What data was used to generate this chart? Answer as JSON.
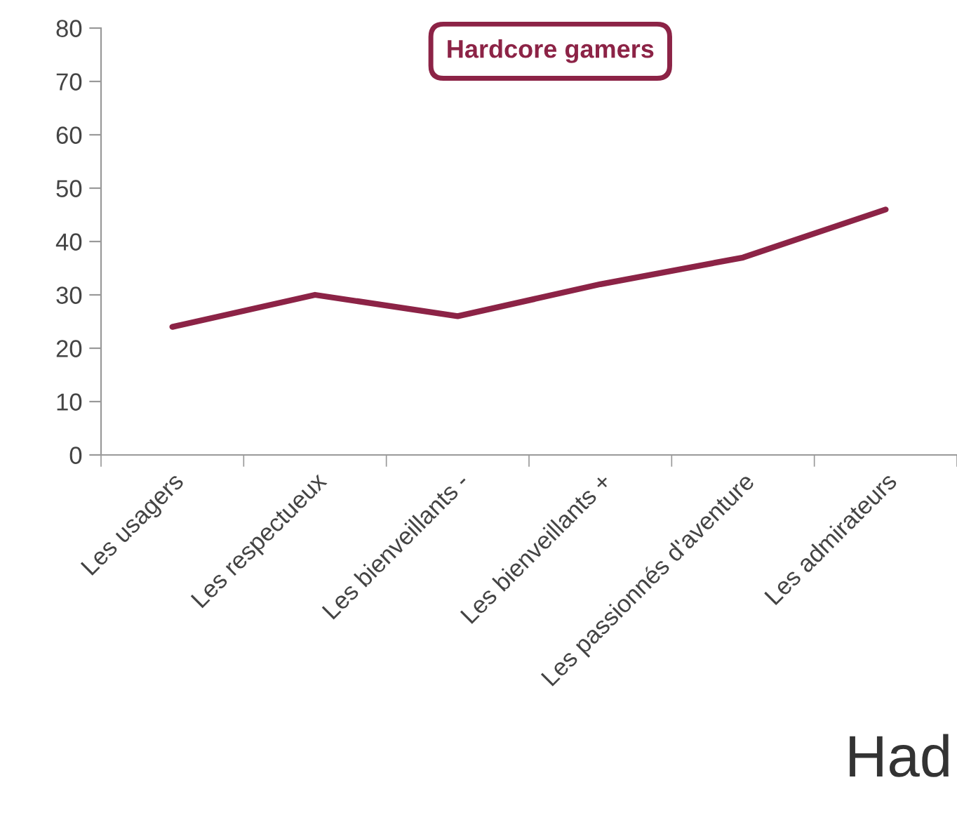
{
  "chart_data": {
    "type": "line",
    "title": "Hardcore gamers",
    "categories": [
      "Les usagers",
      "Les respectueux",
      "Les bienveillants -",
      "Les bienveillants +",
      "Les passionnés d'aventure",
      "Les admirateurs"
    ],
    "series": [
      {
        "color": "#8c2346",
        "values": [
          24,
          30,
          26,
          32,
          37,
          46
        ]
      }
    ],
    "ylim": [
      0,
      80
    ],
    "yticks": [
      0,
      10,
      20,
      30,
      40,
      50,
      60,
      70,
      80
    ],
    "grid": false,
    "legend": false,
    "marker": "none",
    "line_style": "solid",
    "annotations": [
      "Had"
    ]
  }
}
